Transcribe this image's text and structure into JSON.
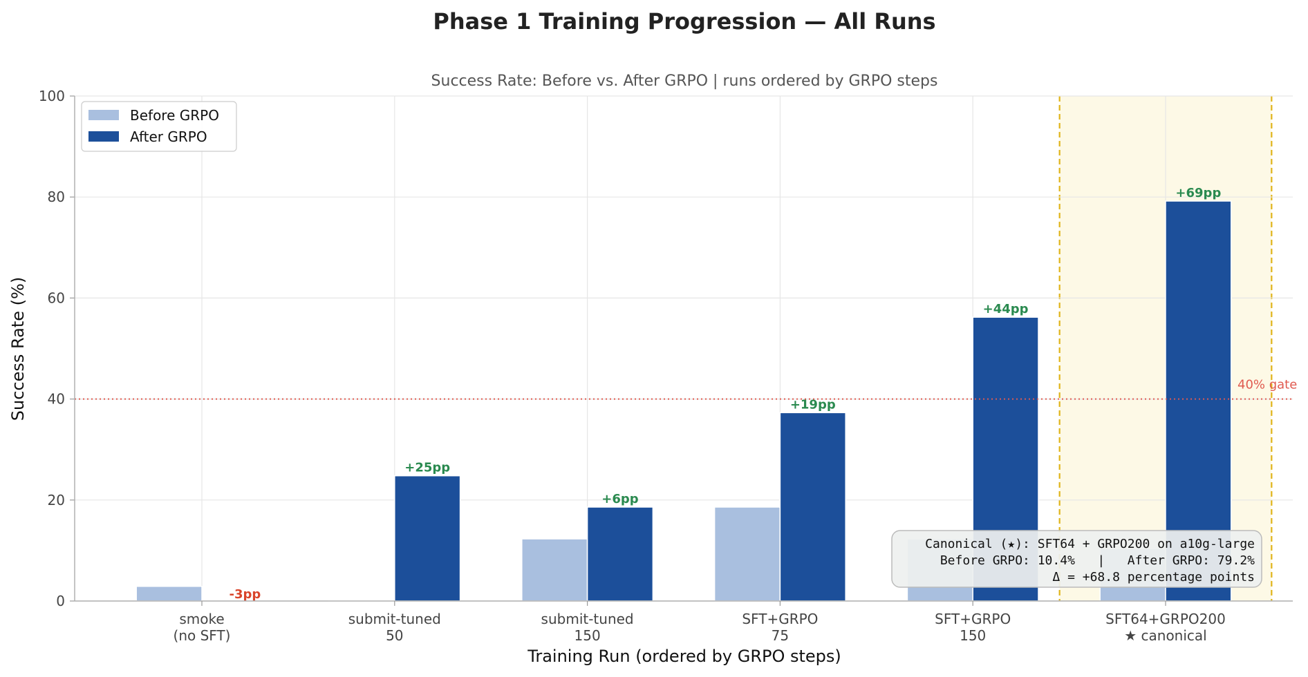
{
  "figure_title": "Phase 1 Training Progression — All Runs",
  "chart_data": {
    "type": "bar",
    "title": "Success Rate: Before vs. After GRPO  |  runs ordered by GRPO steps",
    "xlabel": "Training Run  (ordered by GRPO steps)",
    "ylabel": "Success Rate (%)",
    "ylim": [
      0,
      100
    ],
    "yticks": [
      0,
      20,
      40,
      60,
      80,
      100
    ],
    "grid": true,
    "legend_position": "top-left",
    "categories": [
      [
        "smoke",
        "(no SFT)"
      ],
      [
        "submit-tuned",
        "50"
      ],
      [
        "submit-tuned",
        "150"
      ],
      [
        "SFT+GRPO",
        "75"
      ],
      [
        "SFT+GRPO",
        "150"
      ],
      [
        "SFT64+GRPO200",
        "★ canonical"
      ]
    ],
    "series": [
      {
        "name": "Before GRPO",
        "color": "#a9bfdf",
        "values": [
          2.9,
          0.2,
          12.3,
          18.6,
          12.3,
          10.4
        ]
      },
      {
        "name": "After GRPO",
        "color": "#1c4f9a",
        "values": [
          0,
          24.8,
          18.6,
          37.3,
          56.2,
          79.2
        ]
      }
    ],
    "delta_labels": [
      "-3pp",
      "+25pp",
      "+6pp",
      "+19pp",
      "+44pp",
      "+69pp"
    ],
    "delta_colors": {
      "positive": "#2a8a4f",
      "negative": "#d9452b"
    },
    "reference_line": {
      "value": 40,
      "label": "40% gate",
      "color": "#e05a4f"
    },
    "highlight": {
      "category_index": 5,
      "fill": "#fdf9e6",
      "border": "#e0b41a"
    },
    "annotation_box": {
      "lines": [
        "Canonical (★): SFT64 + GRPO200 on a10g-large",
        "Before GRPO: 10.4%   |   After GRPO: 79.2%",
        "Δ = +68.8 percentage points"
      ]
    }
  }
}
